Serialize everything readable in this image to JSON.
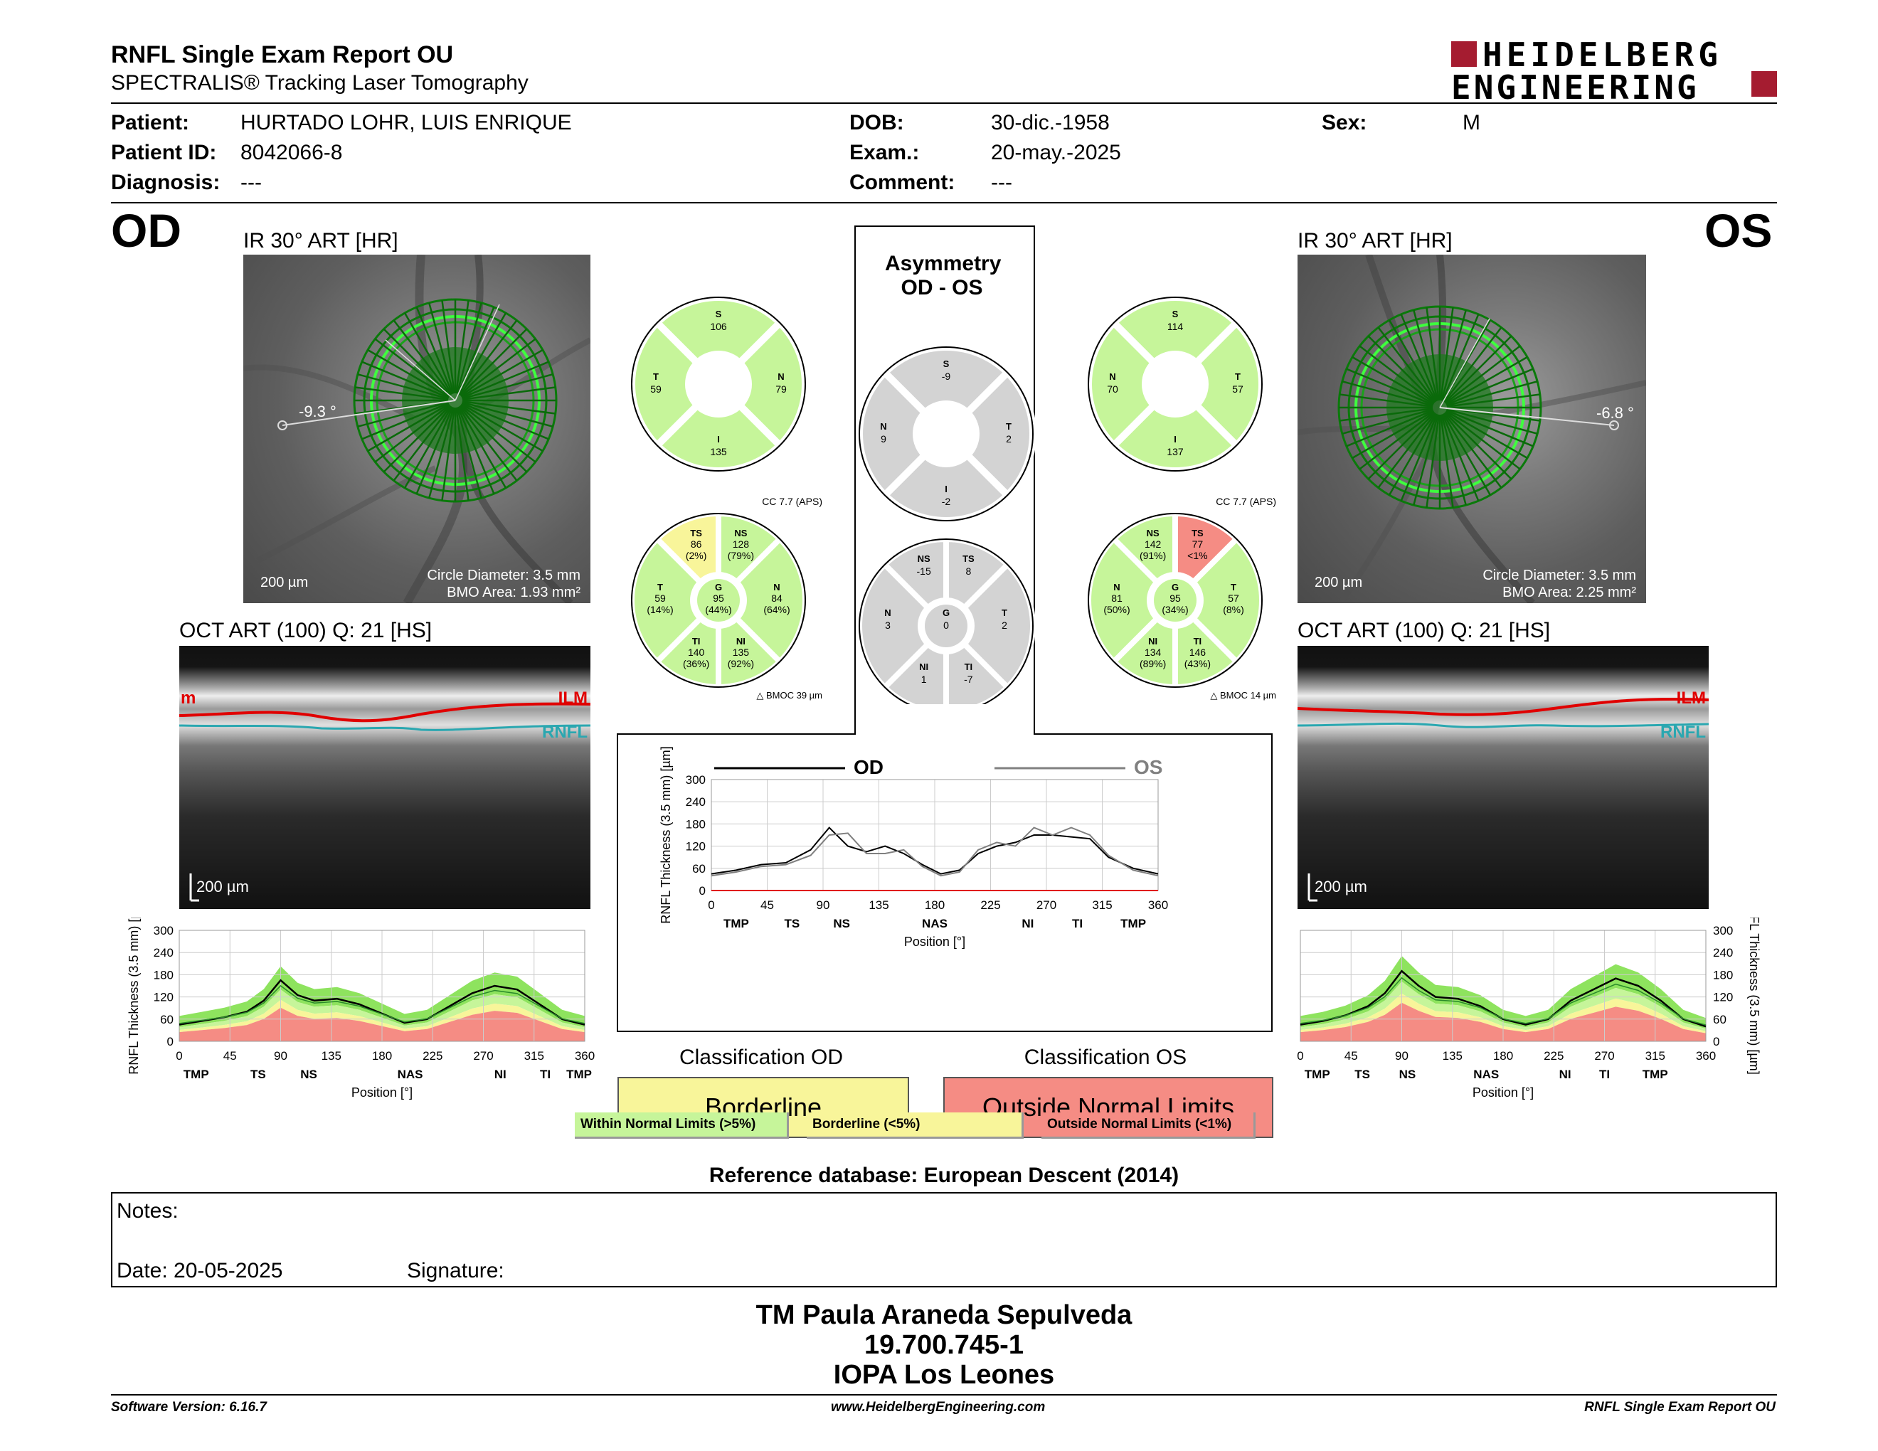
{
  "header": {
    "title": "RNFL Single Exam Report OU",
    "subtitle": "SPECTRALIS® Tracking Laser Tomography",
    "logo_line1": "HEIDELBERG",
    "logo_line2": "ENGINEERING"
  },
  "patient": {
    "patient_label": "Patient:",
    "patient_value": "HURTADO LOHR, LUIS ENRIQUE",
    "id_label": "Patient ID:",
    "id_value": "8042066-8",
    "diag_label": "Diagnosis:",
    "diag_value": "---",
    "dob_label": "DOB:",
    "dob_value": "30-dic.-1958",
    "exam_label": "Exam.:",
    "exam_value": "20-may.-2025",
    "comment_label": "Comment:",
    "comment_value": "---",
    "sex_label": "Sex:",
    "sex_value": "M"
  },
  "od": {
    "eye": "OD",
    "ir_caption": "IR 30° ART [HR]",
    "angle": "-9.3 °",
    "scale": "200 µm",
    "circle_diameter": "Circle Diameter: 3.5 mm",
    "bmo_area": "BMO Area: 1.93 mm²",
    "oct_caption": "OCT ART (100) Q: 21 [HS]",
    "oct_scale": "200 µm",
    "ilm": "ILM",
    "ilm_partial": "m",
    "rnfl": "RNFL",
    "cc": "CC 7.7 (APS)",
    "bmoc": "BMOC 39 µm",
    "sectors4": {
      "S": "106",
      "N": "79",
      "I": "135",
      "T": "59"
    },
    "sectors6": {
      "TS": [
        "86",
        "(2%)"
      ],
      "NS": [
        "128",
        "(79%)"
      ],
      "T": [
        "59",
        "(14%)"
      ],
      "G": [
        "95",
        "(44%)"
      ],
      "N": [
        "84",
        "(64%)"
      ],
      "TI": [
        "140",
        "(36%)"
      ],
      "NI": [
        "135",
        "(92%)"
      ]
    },
    "classification_label": "Classification OD",
    "classification": "Borderline"
  },
  "os": {
    "eye": "OS",
    "ir_caption": "IR 30° ART [HR]",
    "angle": "-6.8 °",
    "scale": "200 µm",
    "circle_diameter": "Circle Diameter: 3.5 mm",
    "bmo_area": "BMO Area: 2.25 mm²",
    "oct_caption": "OCT ART (100) Q: 21 [HS]",
    "oct_scale": "200 µm",
    "ilm": "ILM",
    "rnfl": "RNFL",
    "cc": "CC 7.7 (APS)",
    "bmoc": "BMOC 14 µm",
    "sectors4": {
      "S": "114",
      "N": "70",
      "I": "137",
      "T": "57"
    },
    "sectors6": {
      "NS": [
        "142",
        "(91%)"
      ],
      "TS": [
        "77",
        "<1%"
      ],
      "N": [
        "81",
        "(50%)"
      ],
      "G": [
        "95",
        "(34%)"
      ],
      "T": [
        "57",
        "(8%)"
      ],
      "NI": [
        "134",
        "(89%)"
      ],
      "TI": [
        "146",
        "(43%)"
      ]
    },
    "classification_label": "Classification OS",
    "classification": "Outside Normal Limits"
  },
  "asymmetry": {
    "title1": "Asymmetry",
    "title2": "OD - OS",
    "sectors4": {
      "S": "-9",
      "N": "9",
      "T": "2",
      "I": "-2"
    },
    "sectors6": {
      "NS": "-15",
      "TS": "8",
      "N": "3",
      "G": "0",
      "T": "2",
      "NI": "1",
      "TI": "-7"
    }
  },
  "legend": {
    "within": "Within Normal Limits (>5%)",
    "borderline": "Borderline (<5%)",
    "outside": "Outside Normal Limits (<1%)"
  },
  "reference_db": "Reference database: European Descent (2014)",
  "notes": {
    "notes_label": "Notes:",
    "date_label": "Date: 20-05-2025",
    "signature_label": "Signature:"
  },
  "signature_block": {
    "line1": "TM Paula Araneda Sepulveda",
    "line2": "19.700.745-1",
    "line3": "IOPA Los Leones"
  },
  "footer": {
    "left": "Software Version: 6.16.7",
    "center": "www.HeidelbergEngineering.com",
    "right": "RNFL Single Exam Report OU"
  },
  "colors": {
    "within": "#c6f59a",
    "within_band": "#8ee35e",
    "borderline": "#f8f59a",
    "outside": "#f58c84",
    "brand": "#a51c30",
    "ilm_line": "#e00000",
    "rnfl_line": "#2aa7b0"
  },
  "chart_data": [
    {
      "type": "line",
      "id": "comparison",
      "ylabel": "RNFL Thickness (3.5 mm) [µm]",
      "xlabel": "Position [°]",
      "xticks": [
        0,
        45,
        90,
        135,
        180,
        225,
        270,
        315,
        360
      ],
      "yticks": [
        0,
        60,
        120,
        180,
        240,
        300
      ],
      "xlim": [
        0,
        360
      ],
      "ylim": [
        0,
        300
      ],
      "sector_labels": [
        "TMP",
        "TS",
        "NS",
        "NAS",
        "NI",
        "TI",
        "TMP"
      ],
      "sector_positions": [
        20,
        65,
        105,
        180,
        255,
        295,
        340
      ],
      "grid": true,
      "legend": "top",
      "x": [
        0,
        20,
        40,
        60,
        80,
        95,
        110,
        125,
        140,
        155,
        170,
        185,
        200,
        215,
        230,
        245,
        260,
        275,
        290,
        305,
        320,
        340,
        360
      ],
      "series": [
        {
          "name": "OD",
          "color": "#000000",
          "values": [
            45,
            55,
            70,
            75,
            110,
            170,
            120,
            105,
            120,
            100,
            70,
            45,
            55,
            100,
            120,
            130,
            150,
            150,
            145,
            140,
            90,
            60,
            45
          ]
        },
        {
          "name": "OS",
          "color": "#808080",
          "values": [
            40,
            50,
            65,
            70,
            95,
            150,
            155,
            100,
            100,
            110,
            65,
            40,
            50,
            110,
            130,
            120,
            170,
            150,
            170,
            150,
            95,
            55,
            40
          ]
        }
      ]
    },
    {
      "type": "area",
      "id": "od-profile",
      "ylabel": "RNFL Thickness (3.5 mm) [µm]",
      "xlabel": "Position [°]",
      "xticks": [
        0,
        45,
        90,
        135,
        180,
        225,
        270,
        315,
        360
      ],
      "yticks": [
        0,
        60,
        120,
        180,
        240,
        300
      ],
      "xlim": [
        0,
        360
      ],
      "ylim": [
        0,
        300
      ],
      "sector_labels": [
        "TMP",
        "TS",
        "NS",
        "NAS",
        "NI",
        "TI",
        "TMP"
      ],
      "sector_positions": [
        15,
        70,
        115,
        205,
        285,
        325,
        355
      ],
      "x": [
        0,
        20,
        40,
        60,
        75,
        90,
        105,
        120,
        140,
        160,
        180,
        200,
        220,
        240,
        260,
        280,
        300,
        320,
        340,
        360
      ],
      "series": [
        {
          "name": "OD",
          "values": [
            45,
            55,
            65,
            80,
            110,
            165,
            125,
            110,
            115,
            100,
            75,
            50,
            60,
            95,
            130,
            150,
            140,
            100,
            60,
            45
          ]
        }
      ]
    },
    {
      "type": "area",
      "id": "os-profile",
      "ylabel": "RNFL Thickness (3.5 mm) [µm]",
      "xlabel": "Position [°]",
      "xticks": [
        0,
        45,
        90,
        135,
        180,
        225,
        270,
        315,
        360
      ],
      "yticks": [
        0,
        60,
        120,
        180,
        240,
        300
      ],
      "xlim": [
        0,
        360
      ],
      "ylim": [
        0,
        300
      ],
      "sector_labels": [
        "TMP",
        "TS",
        "NS",
        "NAS",
        "NI",
        "TI",
        "TMP"
      ],
      "sector_positions": [
        15,
        55,
        95,
        165,
        235,
        270,
        315
      ],
      "x": [
        0,
        20,
        40,
        60,
        75,
        90,
        105,
        120,
        140,
        160,
        180,
        200,
        220,
        240,
        260,
        280,
        300,
        320,
        340,
        360
      ],
      "series": [
        {
          "name": "OS",
          "values": [
            45,
            55,
            70,
            95,
            130,
            190,
            150,
            120,
            115,
            95,
            60,
            45,
            60,
            110,
            140,
            170,
            150,
            110,
            60,
            40
          ]
        }
      ]
    }
  ]
}
